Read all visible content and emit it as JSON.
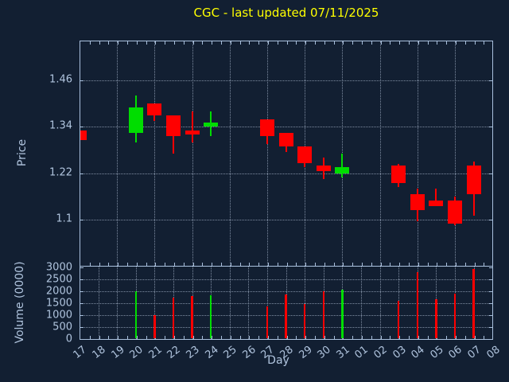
{
  "title": "CGC - last updated 07/11/2025",
  "colors": {
    "background": "#121f32",
    "axis": "#a9c0dd",
    "text": "#b0c4de",
    "title": "#ffff00",
    "up": "#00dd00",
    "down": "#ff0000",
    "grid": "rgba(186,202,222,0.65)"
  },
  "chart_data": [
    {
      "type": "candlestick",
      "title": "CGC - last updated 07/11/2025",
      "xlabel": "Day",
      "ylabel": "Price",
      "x_tick_labels": [
        "17",
        "18",
        "19",
        "20",
        "21",
        "22",
        "23",
        "24",
        "25",
        "26",
        "27",
        "28",
        "29",
        "30",
        "31",
        "01",
        "02",
        "03",
        "04",
        "05",
        "06",
        "07",
        "08"
      ],
      "y_ticks": [
        1.46,
        1.34,
        1.22,
        1.1
      ],
      "ylim": [
        0.98,
        1.56
      ],
      "grid": true,
      "grid_x_every": 2,
      "series": [
        {
          "day": "17",
          "i": 0,
          "open": 1.33,
          "high": 1.33,
          "low": 1.305,
          "close": 1.305,
          "volume": 0
        },
        {
          "day": "20",
          "i": 3,
          "open": 1.325,
          "high": 1.42,
          "low": 1.3,
          "close": 1.39,
          "volume": 1980
        },
        {
          "day": "21",
          "i": 4,
          "open": 1.4,
          "high": 1.4,
          "low": 1.355,
          "close": 1.37,
          "volume": 980
        },
        {
          "day": "22",
          "i": 5,
          "open": 1.37,
          "high": 1.37,
          "low": 1.27,
          "close": 1.315,
          "volume": 1700
        },
        {
          "day": "23",
          "i": 6,
          "open": 1.33,
          "high": 1.38,
          "low": 1.3,
          "close": 1.32,
          "volume": 1780
        },
        {
          "day": "24",
          "i": 7,
          "open": 1.34,
          "high": 1.38,
          "low": 1.315,
          "close": 1.35,
          "volume": 1810
        },
        {
          "day": "27",
          "i": 10,
          "open": 1.36,
          "high": 1.36,
          "low": 1.295,
          "close": 1.315,
          "volume": 1340
        },
        {
          "day": "28",
          "i": 11,
          "open": 1.325,
          "high": 1.325,
          "low": 1.275,
          "close": 1.29,
          "volume": 1840
        },
        {
          "day": "29",
          "i": 12,
          "open": 1.29,
          "high": 1.29,
          "low": 1.235,
          "close": 1.245,
          "volume": 1440
        },
        {
          "day": "30",
          "i": 13,
          "open": 1.24,
          "high": 1.26,
          "low": 1.205,
          "close": 1.225,
          "volume": 1960
        },
        {
          "day": "31",
          "i": 14,
          "open": 1.22,
          "high": 1.27,
          "low": 1.21,
          "close": 1.235,
          "volume": 2040
        },
        {
          "day": "03",
          "i": 17,
          "open": 1.24,
          "high": 1.245,
          "low": 1.185,
          "close": 1.195,
          "volume": 1580
        },
        {
          "day": "04",
          "i": 18,
          "open": 1.165,
          "high": 1.18,
          "low": 1.095,
          "close": 1.125,
          "volume": 2780
        },
        {
          "day": "05",
          "i": 19,
          "open": 1.15,
          "high": 1.18,
          "low": 1.135,
          "close": 1.135,
          "volume": 1630
        },
        {
          "day": "06",
          "i": 20,
          "open": 1.15,
          "high": 1.16,
          "low": 1.085,
          "close": 1.09,
          "volume": 1860
        },
        {
          "day": "07",
          "i": 21,
          "open": 1.24,
          "high": 1.25,
          "low": 1.11,
          "close": 1.165,
          "volume": 2900
        }
      ]
    },
    {
      "type": "bar",
      "ylabel": "Volume (0000)",
      "note": "volume bars share x positions and up/down colors with the candlestick series above",
      "y_ticks": [
        3000,
        2500,
        2000,
        1500,
        1000,
        500,
        0
      ],
      "ylim": [
        0,
        3050
      ],
      "grid": true,
      "grid_x_every": 1
    }
  ]
}
